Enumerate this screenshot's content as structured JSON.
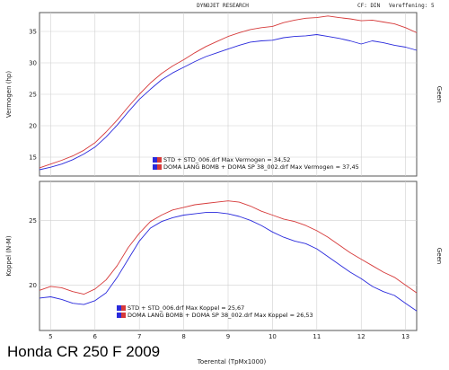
{
  "header": {
    "title": "DYNOJET RESEARCH",
    "correction": "CF: DIN",
    "smoothing": "Vereffening: 5"
  },
  "caption": "Honda CR 250 F 2009",
  "colors": {
    "std": "#2a2adc",
    "doma": "#d63a3a",
    "grid": "#d0d0d0",
    "frame": "#555555"
  },
  "chart_data": [
    {
      "type": "line",
      "ylabel": "Vermogen (hp)",
      "right_label": "Geen",
      "ylim": [
        12,
        38
      ],
      "yticks": [
        15,
        20,
        25,
        30,
        35
      ],
      "xlim": [
        4.75,
        13.25
      ],
      "series": [
        {
          "name": "STD + STD_006.drf Max Vermogen = 34,52",
          "color": "std",
          "x": [
            4.75,
            5.0,
            5.25,
            5.5,
            5.75,
            6.0,
            6.25,
            6.5,
            6.75,
            7.0,
            7.25,
            7.5,
            7.75,
            8.0,
            8.25,
            8.5,
            8.75,
            9.0,
            9.25,
            9.5,
            9.75,
            10.0,
            10.25,
            10.5,
            10.75,
            11.0,
            11.25,
            11.5,
            11.75,
            12.0,
            12.25,
            12.5,
            12.75,
            13.0,
            13.25
          ],
          "values": [
            13.0,
            13.4,
            13.9,
            14.6,
            15.5,
            16.6,
            18.2,
            20.1,
            22.2,
            24.2,
            25.8,
            27.3,
            28.4,
            29.3,
            30.2,
            31.0,
            31.6,
            32.2,
            32.8,
            33.3,
            33.5,
            33.6,
            34.0,
            34.2,
            34.3,
            34.5,
            34.2,
            33.9,
            33.5,
            33.0,
            33.5,
            33.2,
            32.8,
            32.5,
            32.0
          ]
        },
        {
          "name": "DOMA LANG BOMB + DOMA SP 38_002.drf Max Vermogen = 37,45",
          "color": "doma",
          "x": [
            4.75,
            5.0,
            5.25,
            5.5,
            5.75,
            6.0,
            6.25,
            6.5,
            6.75,
            7.0,
            7.25,
            7.5,
            7.75,
            8.0,
            8.25,
            8.5,
            8.75,
            9.0,
            9.25,
            9.5,
            9.75,
            10.0,
            10.25,
            10.5,
            10.75,
            11.0,
            11.25,
            11.5,
            11.75,
            12.0,
            12.25,
            12.5,
            12.75,
            13.0,
            13.25
          ],
          "values": [
            13.3,
            13.9,
            14.5,
            15.2,
            16.1,
            17.3,
            19.0,
            20.9,
            23.0,
            25.0,
            26.8,
            28.3,
            29.5,
            30.5,
            31.6,
            32.6,
            33.4,
            34.2,
            34.8,
            35.3,
            35.6,
            35.8,
            36.4,
            36.8,
            37.1,
            37.2,
            37.45,
            37.2,
            37.0,
            36.7,
            36.8,
            36.5,
            36.2,
            35.6,
            34.8
          ]
        }
      ]
    },
    {
      "type": "line",
      "ylabel": "Koppel (N-M)",
      "right_label": "Geen",
      "xlabel": "Toerental (TpMx1000)",
      "ylim": [
        16.5,
        28
      ],
      "yticks": [
        20,
        25
      ],
      "xlim": [
        4.75,
        13.25
      ],
      "xticks": [
        5,
        6,
        7,
        8,
        9,
        10,
        11,
        12,
        13
      ],
      "series": [
        {
          "name": "STD + STD_006.drf Max Koppel = 25,67",
          "color": "std",
          "x": [
            4.75,
            5.0,
            5.25,
            5.5,
            5.75,
            6.0,
            6.25,
            6.5,
            6.75,
            7.0,
            7.25,
            7.5,
            7.75,
            8.0,
            8.25,
            8.5,
            8.75,
            9.0,
            9.25,
            9.5,
            9.75,
            10.0,
            10.25,
            10.5,
            10.75,
            11.0,
            11.25,
            11.5,
            11.75,
            12.0,
            12.25,
            12.5,
            12.75,
            13.0,
            13.25
          ],
          "values": [
            19.0,
            19.1,
            18.9,
            18.6,
            18.5,
            18.8,
            19.4,
            20.6,
            22.0,
            23.4,
            24.4,
            24.9,
            25.2,
            25.4,
            25.5,
            25.6,
            25.6,
            25.5,
            25.3,
            25.0,
            24.6,
            24.1,
            23.7,
            23.4,
            23.2,
            22.8,
            22.2,
            21.6,
            21.0,
            20.5,
            19.9,
            19.5,
            19.2,
            18.6,
            18.0
          ]
        },
        {
          "name": "DOMA LANG BOMB + DOMA SP 38_002.drf Max Koppel = 26,53",
          "color": "doma",
          "x": [
            4.75,
            5.0,
            5.25,
            5.5,
            5.75,
            6.0,
            6.25,
            6.5,
            6.75,
            7.0,
            7.25,
            7.5,
            7.75,
            8.0,
            8.25,
            8.5,
            8.75,
            9.0,
            9.25,
            9.5,
            9.75,
            10.0,
            10.25,
            10.5,
            10.75,
            11.0,
            11.25,
            11.5,
            11.75,
            12.0,
            12.25,
            12.5,
            12.75,
            13.0,
            13.25
          ],
          "values": [
            19.6,
            19.9,
            19.8,
            19.5,
            19.3,
            19.7,
            20.4,
            21.5,
            22.9,
            24.0,
            24.9,
            25.4,
            25.8,
            26.0,
            26.2,
            26.3,
            26.4,
            26.5,
            26.4,
            26.1,
            25.7,
            25.4,
            25.1,
            24.9,
            24.6,
            24.2,
            23.7,
            23.1,
            22.5,
            22.0,
            21.5,
            21.0,
            20.6,
            20.0,
            19.4
          ]
        }
      ]
    }
  ]
}
